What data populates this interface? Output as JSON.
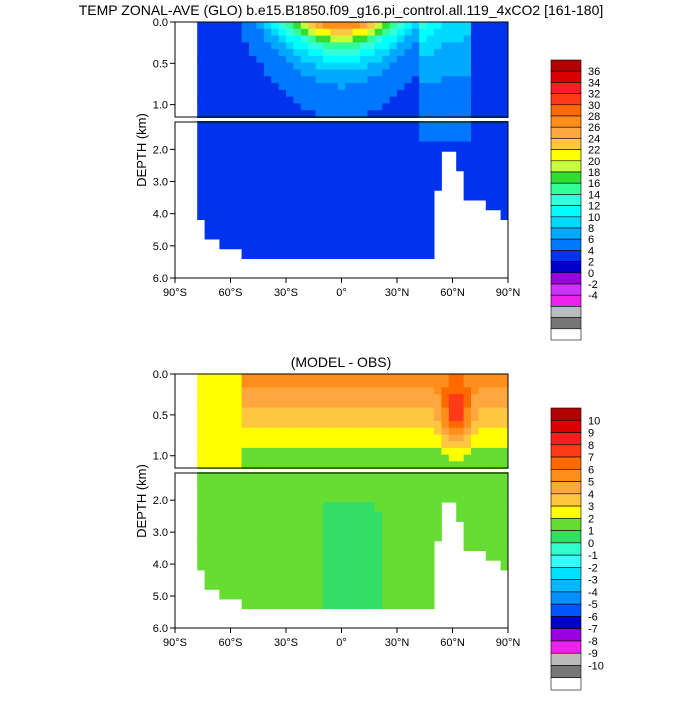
{
  "chart_data": [
    {
      "type": "heatmap",
      "title": "TEMP ZONAL-AVE (GLO) b.e15.B1850.f09_g16.pi_control.all.119_4xCO2 [161-180]",
      "ylabel": "DEPTH (km)",
      "xlim": [
        -90,
        90
      ],
      "ylim": [
        0,
        6
      ],
      "upper_ticks": [
        "0.0",
        "0.5",
        "1.0"
      ],
      "lower_ticks": [
        "2.0",
        "3.0",
        "4.0",
        "5.0",
        "6.0"
      ],
      "x_ticks": [
        "90°S",
        "60°S",
        "30°S",
        "0°",
        "30°N",
        "60°N",
        "90°N"
      ],
      "colorbar": {
        "labels": [
          "36",
          "34",
          "32",
          "30",
          "28",
          "26",
          "24",
          "22",
          "20",
          "18",
          "16",
          "14",
          "12",
          "10",
          "8",
          "6",
          "4",
          "2",
          "0",
          "-2",
          "-4"
        ],
        "colors": [
          "#b30000",
          "#db0000",
          "#f51f1f",
          "#ff3a16",
          "#ff6a00",
          "#ff8e1a",
          "#ffa63e",
          "#ffc640",
          "#ffff00",
          "#c8ff3c",
          "#33dd33",
          "#33ff99",
          "#33ffe0",
          "#00ffff",
          "#00d9ff",
          "#00a8ff",
          "#0077ff",
          "#0033ee",
          "#0000cc",
          "#9900dd",
          "#cc33ff",
          "#ee22ee",
          "#bbbbbb",
          "#777777",
          "#ffffff"
        ]
      }
    },
    {
      "type": "heatmap",
      "title": "(MODEL - OBS)",
      "ylabel": "DEPTH (km)",
      "xlim": [
        -90,
        90
      ],
      "ylim": [
        0,
        6
      ],
      "upper_ticks": [
        "0.0",
        "0.5",
        "1.0"
      ],
      "lower_ticks": [
        "2.0",
        "3.0",
        "4.0",
        "5.0",
        "6.0"
      ],
      "x_ticks": [
        "90°S",
        "60°S",
        "30°S",
        "0°",
        "30°N",
        "60°N",
        "90°N"
      ],
      "colorbar": {
        "labels": [
          "10",
          "9",
          "8",
          "7",
          "6",
          "5",
          "4",
          "3",
          "2",
          "1",
          "0",
          "-1",
          "-2",
          "-3",
          "-4",
          "-5",
          "-6",
          "-7",
          "-8",
          "-9",
          "-10"
        ],
        "colors": [
          "#b30000",
          "#db0000",
          "#f51f1f",
          "#ff3a16",
          "#ff6a00",
          "#ff8e1a",
          "#ffa63e",
          "#ffc640",
          "#ffff00",
          "#66dd33",
          "#33dd66",
          "#33ffcc",
          "#33ffff",
          "#00e0ff",
          "#00b8ff",
          "#0090ff",
          "#0055ff",
          "#0000cc",
          "#9900dd",
          "#ee22ee",
          "#bbbbbb",
          "#777777",
          "#ffffff"
        ]
      }
    }
  ]
}
